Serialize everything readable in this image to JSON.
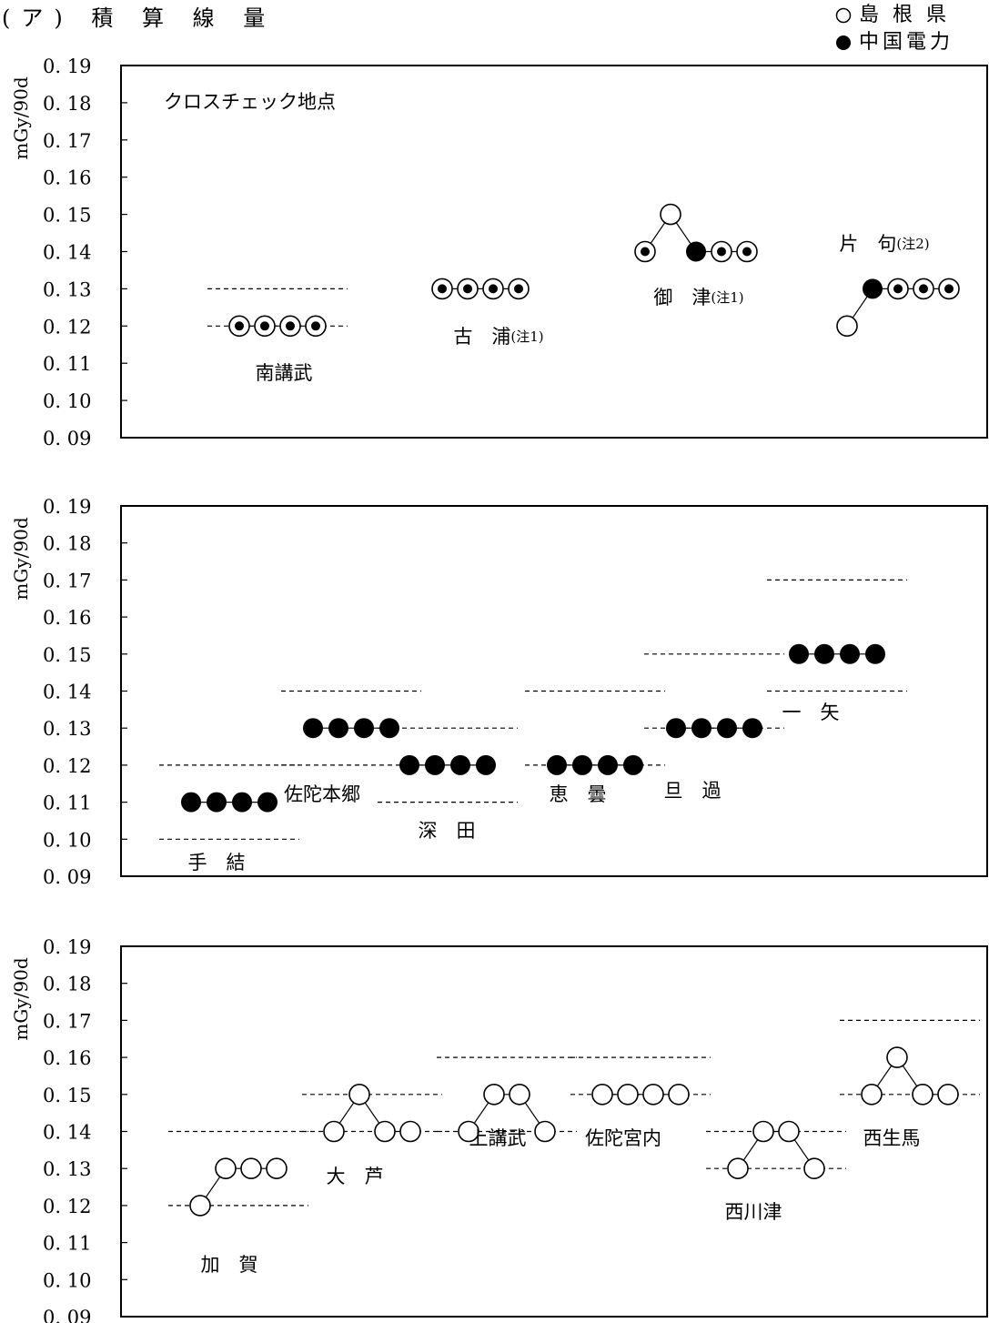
{
  "page": {
    "title": "(ア) 積 算 線 量"
  },
  "legend": [
    {
      "label": "島 根 県",
      "marker": "open-circle"
    },
    {
      "label": "中国電力",
      "marker": "filled-circle"
    }
  ],
  "colors": {
    "ink": "#000000",
    "background": "#ffffff"
  },
  "chart_data": [
    {
      "type": "scatter",
      "ylabel": "mGy/90d",
      "ylim": [
        0.09,
        0.19
      ],
      "yticks": [
        "0. 19",
        "0. 18",
        "0. 17",
        "0. 16",
        "0. 15",
        "0. 14",
        "0. 13",
        "0. 12",
        "0. 11",
        "0. 10",
        "0. 09"
      ],
      "annotation": "クロスチェック地点",
      "sites": [
        {
          "label": "南講武",
          "range": [
            0.12,
            0.13
          ],
          "points": [
            [
              0.12,
              "both"
            ],
            [
              0.12,
              "both"
            ],
            [
              0.12,
              "both"
            ],
            [
              0.12,
              "both"
            ]
          ]
        },
        {
          "label": "古　浦",
          "note": "(注1)",
          "range": null,
          "points": [
            [
              0.13,
              "both"
            ],
            [
              0.13,
              "both"
            ],
            [
              0.13,
              "both"
            ],
            [
              0.13,
              "both"
            ]
          ]
        },
        {
          "label": "御　津",
          "note": "(注1)",
          "range": null,
          "points": [
            [
              0.14,
              "both"
            ],
            [
              0.15,
              "open"
            ],
            [
              0.14,
              "filled"
            ],
            [
              0.14,
              "both"
            ],
            [
              0.14,
              "both"
            ]
          ]
        },
        {
          "label": "片　句",
          "note": "(注2)",
          "range": null,
          "points": [
            [
              0.12,
              "open"
            ],
            [
              0.13,
              "filled"
            ],
            [
              0.13,
              "both"
            ],
            [
              0.13,
              "both"
            ],
            [
              0.13,
              "both"
            ]
          ]
        }
      ]
    },
    {
      "type": "scatter",
      "ylabel": "mGy/90d",
      "ylim": [
        0.09,
        0.19
      ],
      "yticks": [
        "0. 19",
        "0. 18",
        "0. 17",
        "0. 16",
        "0. 15",
        "0. 14",
        "0. 13",
        "0. 12",
        "0. 11",
        "0. 10",
        "0. 09"
      ],
      "sites": [
        {
          "label": "手　結",
          "range": [
            0.1,
            0.12
          ],
          "points": [
            [
              0.11,
              "filled"
            ],
            [
              0.11,
              "filled"
            ],
            [
              0.11,
              "filled"
            ],
            [
              0.11,
              "filled"
            ]
          ]
        },
        {
          "label": "佐陀本郷",
          "range": [
            0.12,
            0.14
          ],
          "points": [
            [
              0.13,
              "filled"
            ],
            [
              0.13,
              "filled"
            ],
            [
              0.13,
              "filled"
            ],
            [
              0.13,
              "filled"
            ]
          ]
        },
        {
          "label": "深　田",
          "range": [
            0.11,
            0.13
          ],
          "points": [
            [
              0.12,
              "filled"
            ],
            [
              0.12,
              "filled"
            ],
            [
              0.12,
              "filled"
            ],
            [
              0.12,
              "filled"
            ]
          ]
        },
        {
          "label": "恵　曇",
          "range": [
            0.12,
            0.14
          ],
          "points": [
            [
              0.12,
              "filled"
            ],
            [
              0.12,
              "filled"
            ],
            [
              0.12,
              "filled"
            ],
            [
              0.12,
              "filled"
            ]
          ]
        },
        {
          "label": "旦　過",
          "range": [
            0.13,
            0.15
          ],
          "points": [
            [
              0.13,
              "filled"
            ],
            [
              0.13,
              "filled"
            ],
            [
              0.13,
              "filled"
            ],
            [
              0.13,
              "filled"
            ]
          ]
        },
        {
          "label": "一　矢",
          "range": [
            0.14,
            0.17
          ],
          "points": [
            [
              0.15,
              "filled"
            ],
            [
              0.15,
              "filled"
            ],
            [
              0.15,
              "filled"
            ],
            [
              0.15,
              "filled"
            ]
          ]
        }
      ]
    },
    {
      "type": "scatter",
      "ylabel": "mGy/90d",
      "ylim": [
        0.09,
        0.19
      ],
      "yticks": [
        "0. 19",
        "0. 18",
        "0. 17",
        "0. 16",
        "0. 15",
        "0. 14",
        "0. 13",
        "0. 12",
        "0. 11",
        "0. 10",
        "0. 09"
      ],
      "sites": [
        {
          "label": "加　賀",
          "range": [
            0.12,
            0.14
          ],
          "points": [
            [
              0.12,
              "open"
            ],
            [
              0.13,
              "open"
            ],
            [
              0.13,
              "open"
            ],
            [
              0.13,
              "open"
            ]
          ]
        },
        {
          "label": "大　芦",
          "range": [
            0.14,
            0.15
          ],
          "points": [
            [
              0.14,
              "open"
            ],
            [
              0.15,
              "open"
            ],
            [
              0.14,
              "open"
            ],
            [
              0.14,
              "open"
            ]
          ]
        },
        {
          "label": "上講武",
          "range": [
            0.14,
            0.16
          ],
          "points": [
            [
              0.14,
              "open"
            ],
            [
              0.15,
              "open"
            ],
            [
              0.15,
              "open"
            ],
            [
              0.14,
              "open"
            ]
          ]
        },
        {
          "label": "佐陀宮内",
          "range": [
            0.15,
            0.16
          ],
          "points": [
            [
              0.15,
              "open"
            ],
            [
              0.15,
              "open"
            ],
            [
              0.15,
              "open"
            ],
            [
              0.15,
              "open"
            ]
          ]
        },
        {
          "label": "西川津",
          "range": [
            0.13,
            0.14
          ],
          "points": [
            [
              0.13,
              "open"
            ],
            [
              0.14,
              "open"
            ],
            [
              0.14,
              "open"
            ],
            [
              0.13,
              "open"
            ]
          ]
        },
        {
          "label": "西生馬",
          "range": [
            0.15,
            0.17
          ],
          "points": [
            [
              0.15,
              "open"
            ],
            [
              0.16,
              "open"
            ],
            [
              0.15,
              "open"
            ],
            [
              0.15,
              "open"
            ]
          ]
        }
      ]
    }
  ]
}
